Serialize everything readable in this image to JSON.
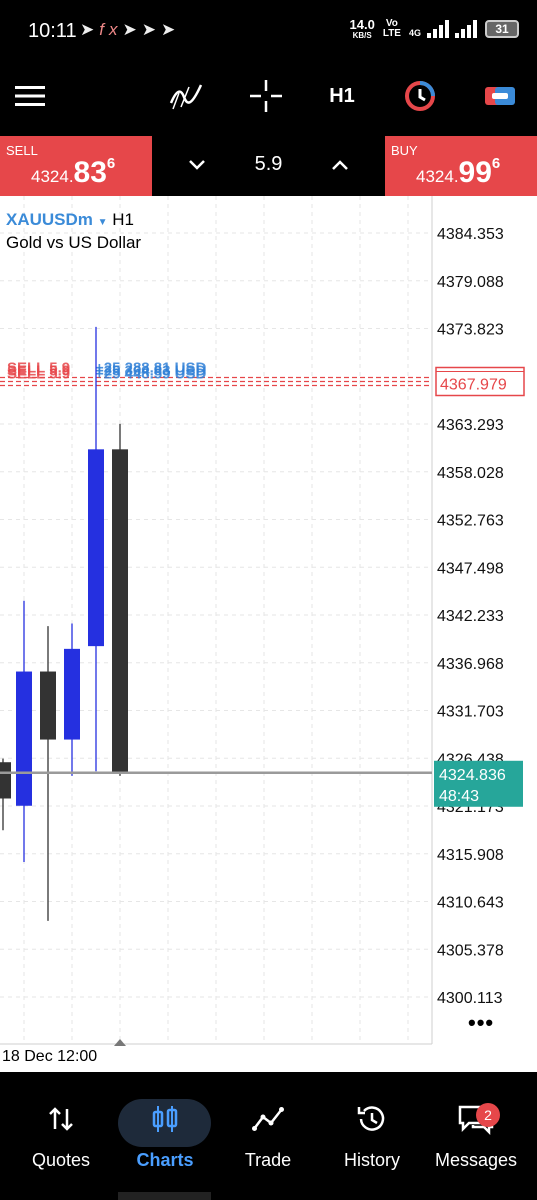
{
  "status_bar": {
    "time": "10:11",
    "left_icons": [
      "telegram-icon",
      "fx-icon",
      "telegram-icon",
      "telegram-icon",
      "telegram-icon"
    ],
    "speed_value": "14.0",
    "speed_unit": "KB/S",
    "network_top": "Vo",
    "network_bottom": "LTE",
    "network_type": "4G",
    "battery": "31"
  },
  "toolbar": {
    "timeframe": "H1",
    "icons": [
      "menu-icon",
      "indicators-icon",
      "crosshair-icon",
      "timeframe",
      "one-click-trading-icon",
      "trade-icon"
    ]
  },
  "trade_bar": {
    "sell_label": "SELL",
    "sell_price_prefix": "4324.",
    "sell_price_big": "83",
    "sell_price_sup": "6",
    "buy_label": "BUY",
    "buy_price_prefix": "4324.",
    "buy_price_big": "99",
    "buy_price_sup": "6",
    "lot_value": "5.9"
  },
  "chart": {
    "symbol": "XAUUSDm",
    "timeframe": "H1",
    "description": "Gold vs US Dollar",
    "time_label": "18 Dec 12:00",
    "more_label": "•••"
  },
  "chart_data": {
    "type": "candlestick",
    "symbol": "XAUUSDm",
    "timeframe": "H1",
    "price_ticks": [
      "4384.353",
      "4379.088",
      "4373.823",
      "4367.979",
      "4363.293",
      "4358.028",
      "4352.763",
      "4347.498",
      "4342.233",
      "4336.968",
      "4331.703",
      "4326.438",
      "4321.173",
      "4315.908",
      "4310.643",
      "4305.378",
      "4300.113"
    ],
    "y_range": [
      4296.0,
      4388.5
    ],
    "current_price": "4324.836",
    "countdown": "48:43",
    "order_line_price": "4367.979",
    "order_labels": [
      {
        "left": "SELL 5.9",
        "right": "+25 288.81 USD"
      },
      {
        "left": "SELL 5.9",
        "right": "+25 364.83 USD"
      },
      {
        "left": "SELL 5.9",
        "right": "+25 448.59 USD"
      }
    ],
    "candles": [
      {
        "open": 4326.0,
        "high": 4326.4,
        "low": 4318.5,
        "close": 4322.0,
        "color": "dark"
      },
      {
        "open": 4321.2,
        "high": 4343.8,
        "low": 4315.0,
        "close": 4336.0,
        "color": "blue"
      },
      {
        "open": 4336.0,
        "high": 4341.0,
        "low": 4308.5,
        "close": 4328.5,
        "color": "dark"
      },
      {
        "open": 4328.5,
        "high": 4341.3,
        "low": 4324.5,
        "close": 4338.5,
        "color": "blue"
      },
      {
        "open": 4338.8,
        "high": 4374.0,
        "low": 4325.0,
        "close": 4360.5,
        "color": "blue"
      },
      {
        "open": 4360.5,
        "high": 4363.3,
        "low": 4324.5,
        "close": 4324.8,
        "color": "dark"
      }
    ],
    "colors": {
      "bull": "#2530e0",
      "bear": "#333333",
      "order_line": "#e6474a",
      "order_profit": "#2f7fd6",
      "price_tag": "#26a69a",
      "grid": "#e6e6e6"
    }
  },
  "bottom_nav": {
    "items": [
      {
        "label": "Quotes",
        "icon": "quotes-icon"
      },
      {
        "label": "Charts",
        "icon": "charts-icon"
      },
      {
        "label": "Trade",
        "icon": "trade-icon"
      },
      {
        "label": "History",
        "icon": "history-icon"
      },
      {
        "label": "Messages",
        "icon": "messages-icon"
      }
    ],
    "active": "Charts",
    "messages_badge": "2"
  }
}
